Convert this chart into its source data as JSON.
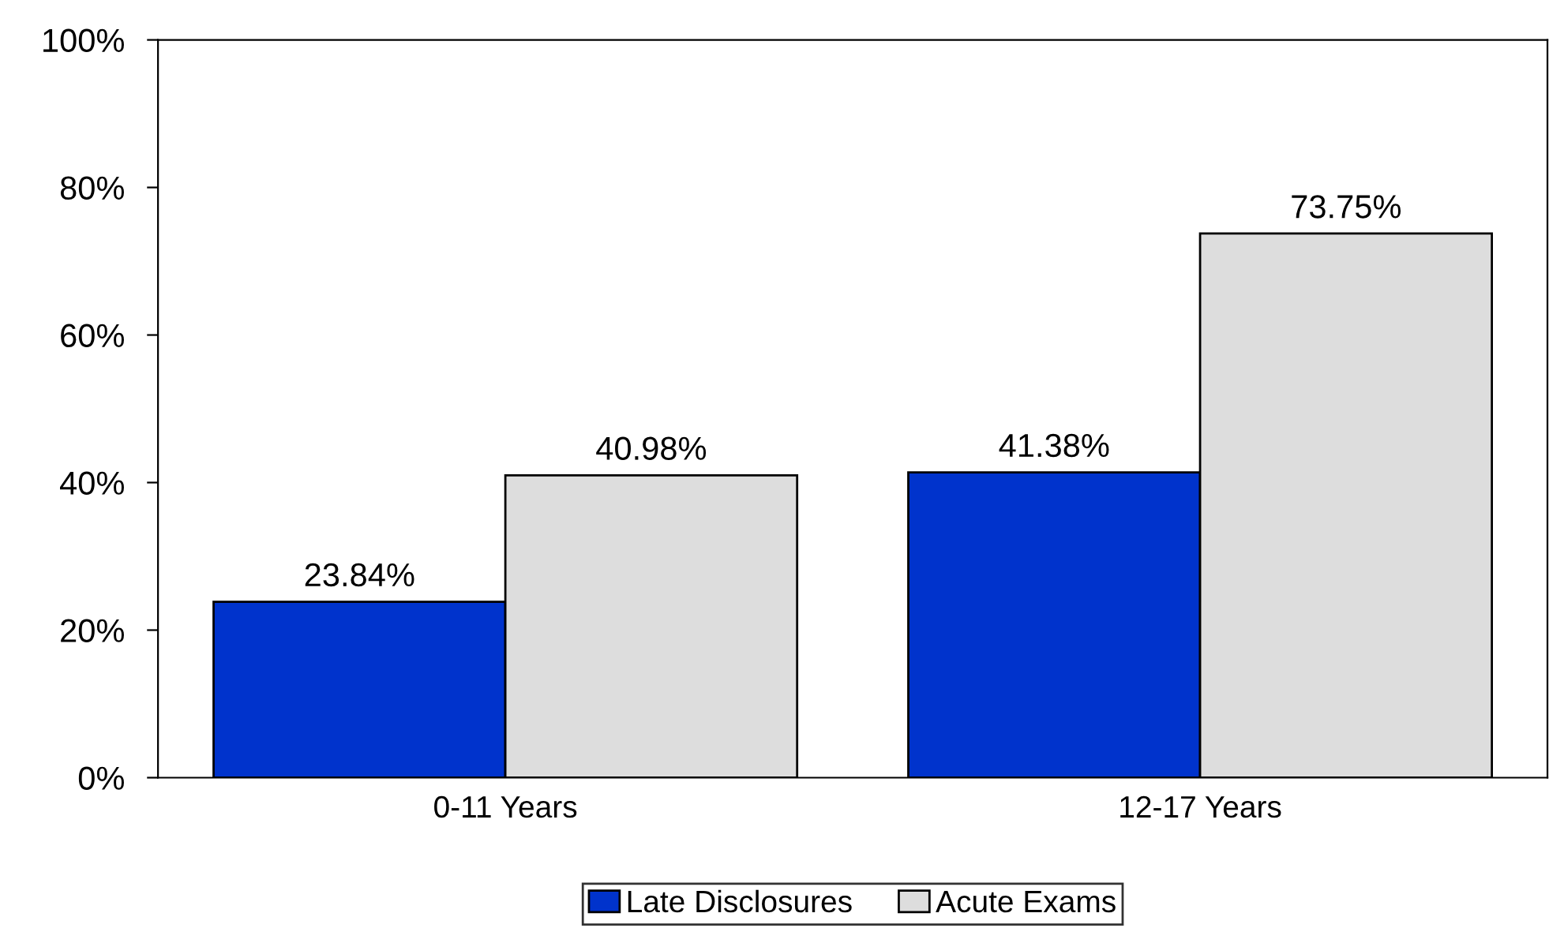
{
  "chart_data": {
    "type": "bar",
    "categories": [
      "0-11 Years",
      "12-17 Years"
    ],
    "series": [
      {
        "name": "Late Disclosures",
        "color": "#0033cc",
        "values": [
          23.84,
          41.38
        ],
        "value_labels": [
          "23.84%",
          "41.38%"
        ]
      },
      {
        "name": "Acute Exams",
        "color": "#dddddd",
        "values": [
          40.98,
          73.75
        ],
        "value_labels": [
          "40.98%",
          "73.75%"
        ]
      }
    ],
    "ylim": [
      0,
      100
    ],
    "yticks": [
      {
        "value": 0,
        "label": "0%"
      },
      {
        "value": 20,
        "label": "20%"
      },
      {
        "value": 40,
        "label": "40%"
      },
      {
        "value": 60,
        "label": "60%"
      },
      {
        "value": 80,
        "label": "80%"
      },
      {
        "value": 100,
        "label": "100%"
      }
    ],
    "grid": false,
    "legend": "bottom"
  }
}
